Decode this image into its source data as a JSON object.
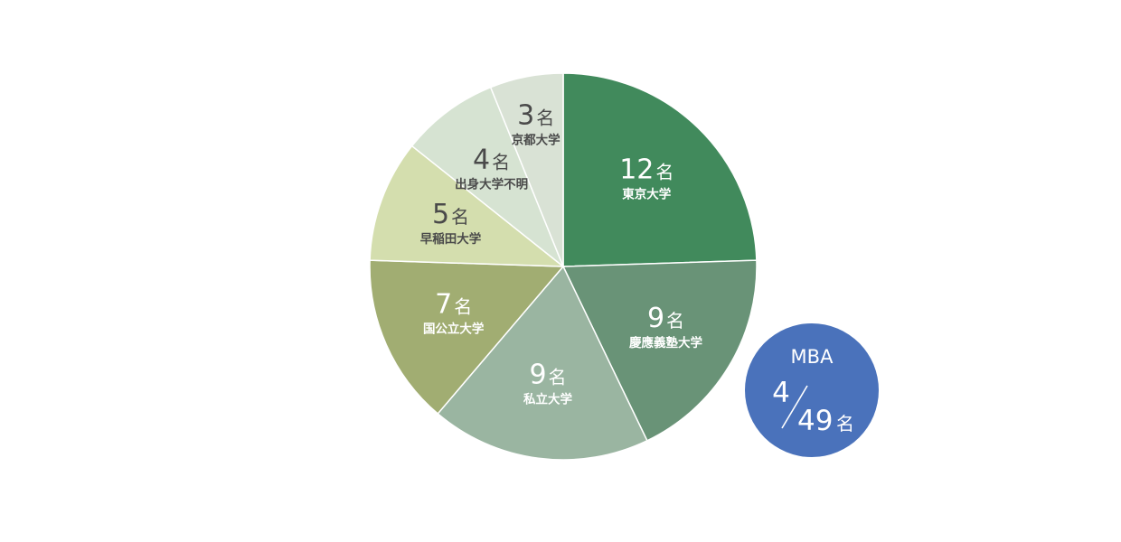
{
  "chart_data": {
    "type": "pie",
    "unit_label": "名",
    "start": "12 o'clock",
    "direction": "clockwise",
    "slices": [
      {
        "label": "東京大学",
        "value": 12,
        "color": "#418a5c",
        "text_color": "#ffffff"
      },
      {
        "label": "慶應義塾大学",
        "value": 9,
        "color": "#699377",
        "text_color": "#ffffff"
      },
      {
        "label": "私立大学",
        "value": 9,
        "color": "#9ab5a1",
        "text_color": "#ffffff"
      },
      {
        "label": "国公立大学",
        "value": 7,
        "color": "#a1ad72",
        "text_color": "#ffffff"
      },
      {
        "label": "早稲田大学",
        "value": 5,
        "color": "#d4deae",
        "text_color": "#4a4a4a"
      },
      {
        "label": "出身大学不明",
        "value": 4,
        "color": "#d6e3d2",
        "text_color": "#4a4a4a"
      },
      {
        "label": "京都大学",
        "value": 3,
        "color": "#d9e2d5",
        "text_color": "#4a4a4a"
      }
    ]
  },
  "mba_badge": {
    "label": "MBA",
    "numerator": "4",
    "denominator": "49",
    "unit": "名",
    "color": "#4a72bb",
    "text_color": "#ffffff"
  }
}
